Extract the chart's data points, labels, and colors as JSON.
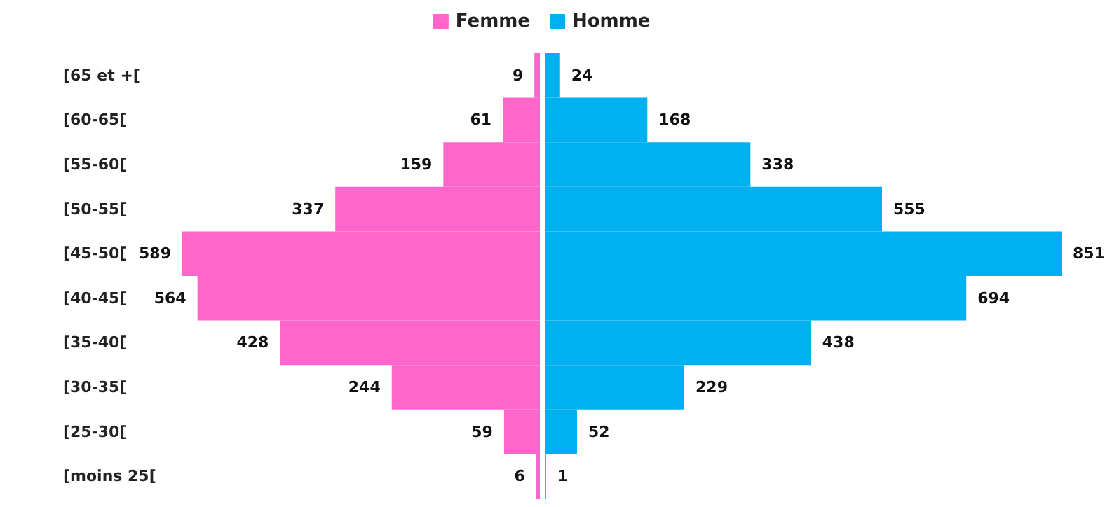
{
  "chart_data": [
    {
      "type": "bar",
      "orientation": "horizontal",
      "legend": "top right",
      "tick_labels": "y",
      "xlim": [
        589,
        0
      ],
      "data_labels": true,
      "categories": [
        "[65 et +[",
        "[60-65[",
        "[55-60[",
        "[50-55[",
        "[45-50[",
        "[40-45[",
        "[35-40[",
        "[30-35[",
        "[25-30[",
        "[moins 25["
      ],
      "series": [
        {
          "name": "Femme",
          "color": "#ff66cc",
          "values": [
            9,
            61,
            159,
            337,
            589,
            564,
            428,
            244,
            59,
            6
          ]
        }
      ]
    },
    {
      "type": "bar",
      "orientation": "horizontal",
      "legend": "top left",
      "tick_labels": false,
      "xlim": [
        0,
        851
      ],
      "data_labels": true,
      "categories": [
        null,
        null,
        null,
        null,
        null,
        null,
        null,
        null,
        null,
        null
      ],
      "series": [
        {
          "name": "Homme",
          "color": "#00b0f0",
          "values": [
            24,
            168,
            338,
            555,
            851,
            694,
            438,
            229,
            52,
            1
          ]
        }
      ]
    }
  ]
}
